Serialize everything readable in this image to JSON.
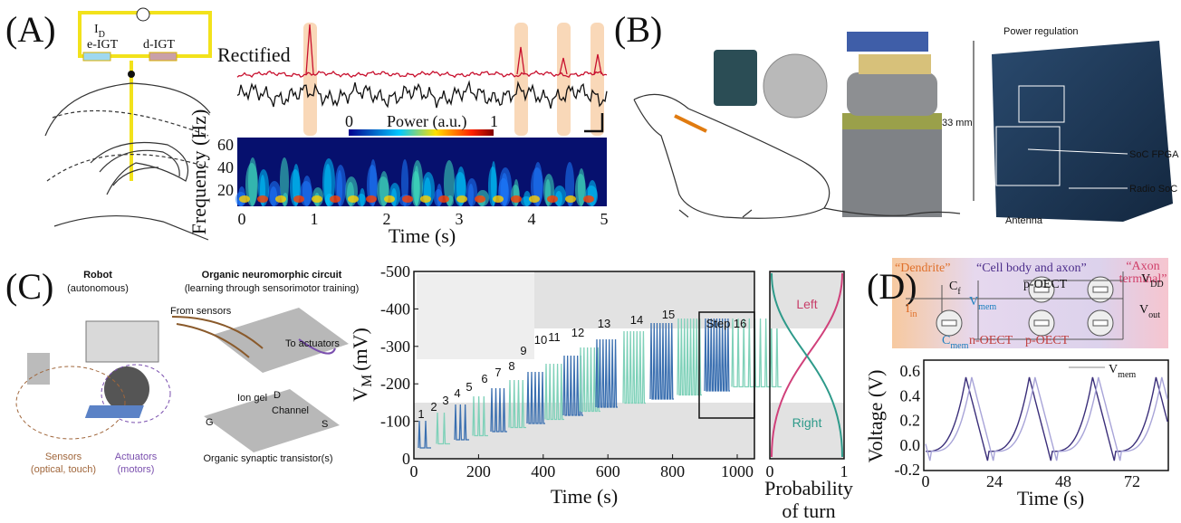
{
  "panels": {
    "A": {
      "label": "(A)",
      "circuit": {
        "current": "I",
        "current_sub": "D",
        "e_igt": "e-IGT",
        "d_igt": "d-IGT"
      },
      "trace_label": "Rectified",
      "colorbar": {
        "title": "Power (a.u.)",
        "min": "0",
        "max": "1"
      },
      "y_label": "Frequency (Hz)",
      "y_ticks": [
        "60",
        "40",
        "20"
      ],
      "x_label": "Time (s)",
      "x_ticks": [
        "0",
        "1",
        "2",
        "3",
        "4",
        "5"
      ]
    },
    "B": {
      "label": "(B)",
      "scale": "33 mm",
      "callouts": [
        "Power regulation",
        "SoC FPGA",
        "Radio SoC",
        "Antenna"
      ]
    },
    "C": {
      "label": "(C)",
      "robot_title": "Robot",
      "robot_sub": "(autonomous)",
      "circuit_title": "Organic neuromorphic circuit",
      "circuit_sub": "(learning through sensorimotor training)",
      "from_sensors": "From sensors",
      "to_actuators": "To actuators",
      "ion_gel": "Ion gel",
      "channel": "Channel",
      "terminals": [
        "D",
        "G",
        "S"
      ],
      "transistor": "Organic synaptic transistor(s)",
      "sensors": "Sensors",
      "sensors_sub": "(optical, touch)",
      "actuators": "Actuators",
      "actuators_sub": "(motors)",
      "y_label": "V",
      "y_label_sub": "M",
      "y_unit": "(mV)",
      "y_ticks": [
        "-500",
        "-400",
        "-300",
        "-200",
        "-100",
        "0"
      ],
      "x_label": "Time (s)",
      "x_ticks": [
        "0",
        "200",
        "400",
        "600",
        "800",
        "1000"
      ],
      "steps": [
        "1",
        "2",
        "3",
        "4",
        "5",
        "6",
        "7",
        "8",
        "9",
        "10",
        "11",
        "12",
        "13",
        "14",
        "15"
      ],
      "last_step": "Step 16",
      "left": "Left",
      "right": "Right",
      "prob_ticks": [
        "0",
        "1"
      ],
      "prob_label": [
        "Probability",
        "of turn"
      ]
    },
    "D": {
      "label": "(D)",
      "dendrite": "“Dendrite”",
      "cell_body": "“Cell body and axon”",
      "axon_terminal": [
        "“Axon",
        "terminal”"
      ],
      "cf": "C",
      "cf_sub": "f",
      "vmem": "V",
      "vmem_sub": "mem",
      "iin": "I",
      "iin_sub": "in",
      "cmem": "C",
      "cmem_sub": "mem",
      "n_oect": "n-OECT",
      "p_oect": "p-OECT",
      "vdd": "V",
      "vdd_sub": "DD",
      "vout": "V",
      "vout_sub": "out",
      "legend": "V",
      "legend_sub": "mem",
      "y_label": "Voltage (V)",
      "y_ticks": [
        "0.6",
        "0.4",
        "0.2",
        "0.0",
        "-0.2"
      ],
      "x_label": "Time (s)",
      "x_ticks": [
        "0",
        "24",
        "48",
        "72"
      ]
    }
  }
}
